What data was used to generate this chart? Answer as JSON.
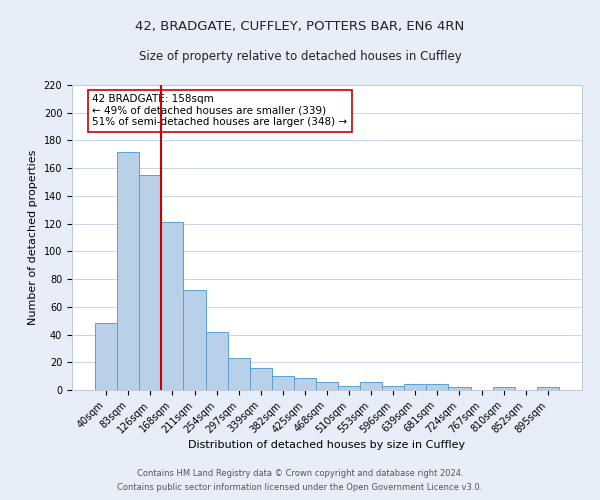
{
  "title": "42, BRADGATE, CUFFLEY, POTTERS BAR, EN6 4RN",
  "subtitle": "Size of property relative to detached houses in Cuffley",
  "xlabel": "Distribution of detached houses by size in Cuffley",
  "ylabel": "Number of detached properties",
  "bar_labels": [
    "40sqm",
    "83sqm",
    "126sqm",
    "168sqm",
    "211sqm",
    "254sqm",
    "297sqm",
    "339sqm",
    "382sqm",
    "425sqm",
    "468sqm",
    "510sqm",
    "553sqm",
    "596sqm",
    "639sqm",
    "681sqm",
    "724sqm",
    "767sqm",
    "810sqm",
    "852sqm",
    "895sqm"
  ],
  "bar_values": [
    48,
    172,
    155,
    121,
    72,
    42,
    23,
    16,
    10,
    9,
    6,
    3,
    6,
    3,
    4,
    4,
    2,
    0,
    2,
    0,
    2
  ],
  "bar_color": "#b8d0e8",
  "bar_edge_color": "#5a9fd4",
  "vline_index": 3,
  "vline_color": "#cc0000",
  "ylim": [
    0,
    220
  ],
  "yticks": [
    0,
    20,
    40,
    60,
    80,
    100,
    120,
    140,
    160,
    180,
    200,
    220
  ],
  "annotation_text": "42 BRADGATE: 158sqm\n← 49% of detached houses are smaller (339)\n51% of semi-detached houses are larger (348) →",
  "annotation_box_color": "#ffffff",
  "annotation_box_edge": "#cc0000",
  "footer_line1": "Contains HM Land Registry data © Crown copyright and database right 2024.",
  "footer_line2": "Contains public sector information licensed under the Open Government Licence v3.0.",
  "bg_color": "#e8eef8",
  "plot_bg_color": "#ffffff",
  "title_fontsize": 9.5,
  "subtitle_fontsize": 8.5,
  "ylabel_fontsize": 8,
  "xlabel_fontsize": 8,
  "tick_fontsize": 7,
  "footer_fontsize": 6,
  "annot_fontsize": 7.5
}
